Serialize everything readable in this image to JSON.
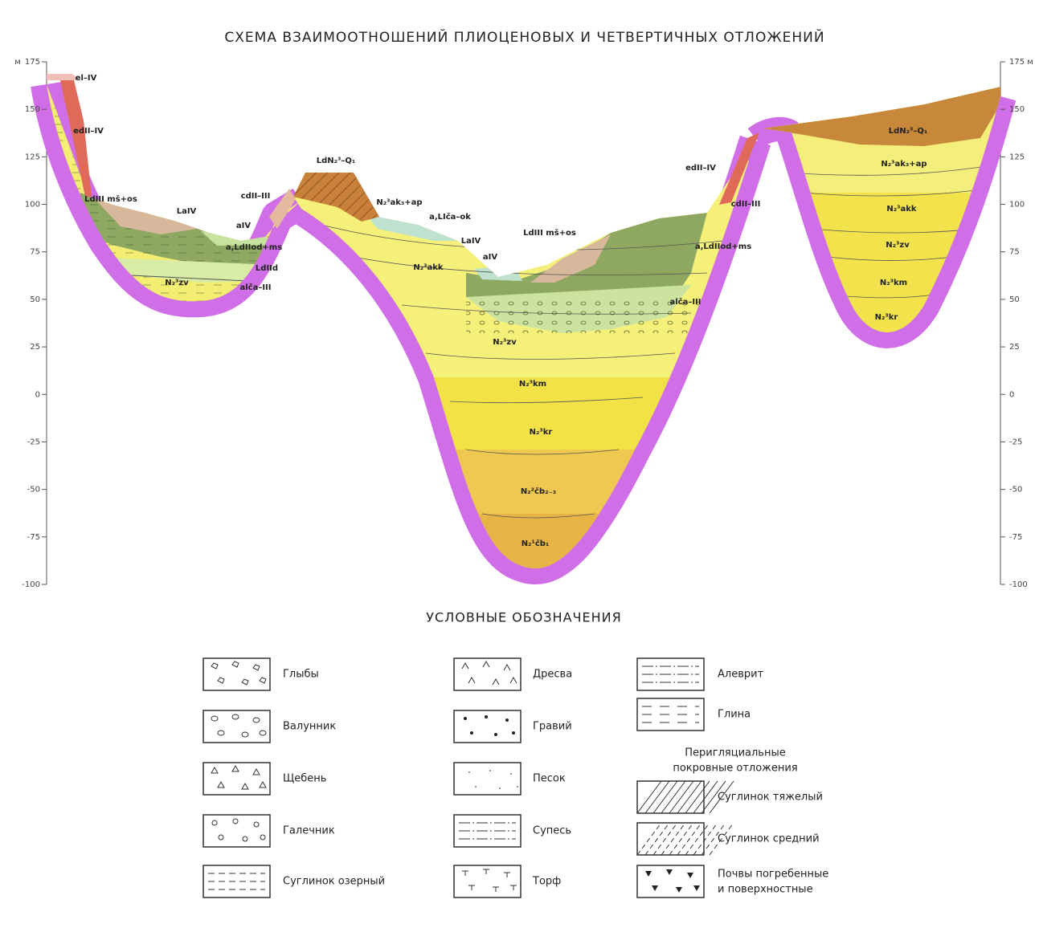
{
  "header": {
    "title": "СХЕМА ВЗАИМООТНОШЕНИЙ  ПЛИОЦЕНОВЫХ И ЧЕТВЕРТИЧНЫХ ОТЛОЖЕНИЙ"
  },
  "left_axis": {
    "unit": "м",
    "ticks": [
      175,
      150,
      125,
      100,
      75,
      50,
      25,
      0,
      -25,
      -50,
      -75,
      -100
    ]
  },
  "right_axis": {
    "unit": "м",
    "ticks": [
      175,
      150,
      125,
      100,
      75,
      50,
      25,
      0,
      -25,
      -50,
      -75,
      -100
    ]
  },
  "layers": [
    "el–IV",
    "edII–IV",
    "LdIII mš+os",
    "LaIV",
    "aIV",
    "a,LdIIod+ms",
    "LdIId",
    "alča–III",
    "N₂³zv",
    "cdII–III",
    "LdN₂³–Q₁",
    "N₂³ak₃+ap",
    "a,LIča–ok",
    "N₂³akk",
    "LaIV",
    "aIV",
    "LdIII mš+os",
    "a,LdIIod+ms",
    "alča–III",
    "N₂³zv",
    "N₂³km",
    "N₂³kr",
    "N₂²čb₂₋₃",
    "N₂¹čb₁",
    "edII–IV",
    "cdII–III",
    "LdN₂³–Q₁",
    "N₂³ak₃+ap",
    "N₂³akk",
    "N₂³zv",
    "N₂³km",
    "N₂³kr"
  ],
  "legend": {
    "title": "УСЛОВНЫЕ ОБОЗНАЧЕНИЯ",
    "column1": [
      "Глыбы",
      "Валунник",
      "Щебень",
      "Галечник",
      "Суглинок озерный"
    ],
    "column2": [
      "Дресва",
      "Гравий",
      "Песок",
      "Супесь",
      "Торф"
    ],
    "column3": [
      "Алеврит",
      "Глина"
    ],
    "subheading": [
      "Перигляциальные",
      "покровные отложения"
    ],
    "column4": [
      "Суглинок тяжелый",
      "Суглинок средний",
      [
        "Почвы погребенные",
        "и поверхностные"
      ]
    ]
  }
}
